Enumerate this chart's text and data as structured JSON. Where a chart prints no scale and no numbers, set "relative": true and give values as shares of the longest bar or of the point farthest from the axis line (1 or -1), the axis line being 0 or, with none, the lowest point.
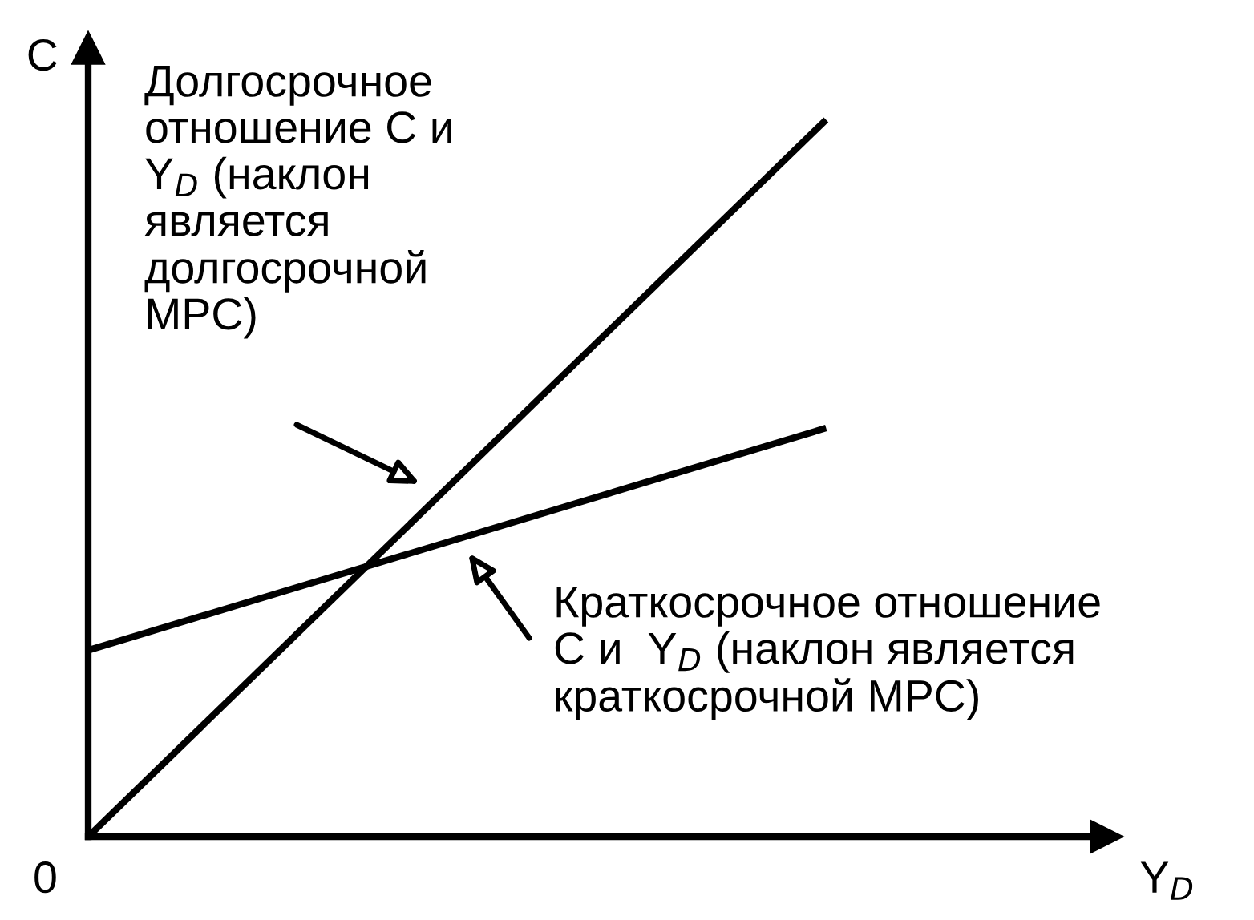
{
  "chart_data": {
    "type": "line",
    "relative": true,
    "xlabel": "Y$_{D}$",
    "ylabel": "C",
    "categories": [
      null,
      null
    ],
    "series": [
      {
        "color": "#000000",
        "values": [
          0,
          1
        ]
      },
      {
        "color": "#000000",
        "values": [
          0.26,
          0.57
        ]
      }
    ],
    "annotations": [
      "Долгосрочное\nотношение C и\nY$_{D}$ (наклон\nявляется\nдолгосрочной\nMPC)",
      "Краткосрочное отношение\nC и  Y$_{D}$ (наклон является\nкраткосрочной MPC)",
      "0"
    ],
    "grid": false,
    "legend": false,
    "marker": "none",
    "line_style": "solid"
  }
}
